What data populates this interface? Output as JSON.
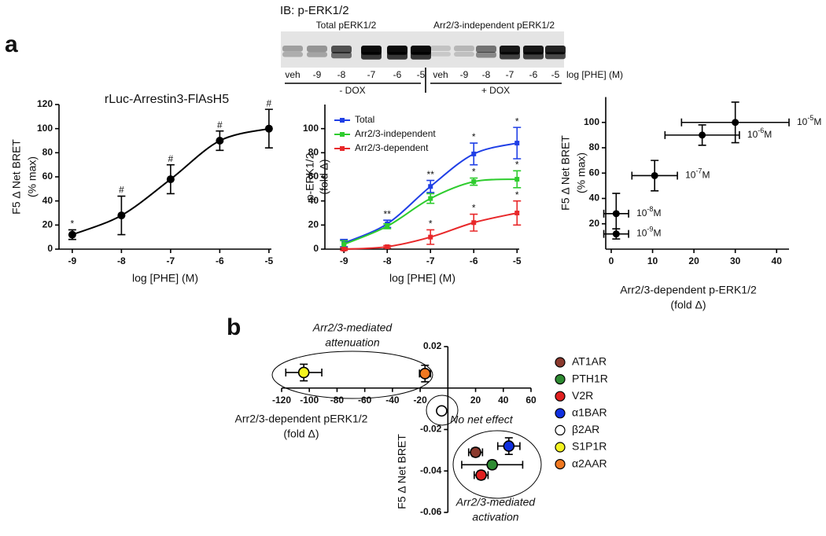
{
  "panel_labels": [
    "a",
    "b"
  ],
  "blot": {
    "title": "IB: p-ERK1/2",
    "groups": [
      "Total pERK1/2",
      "Arr2/3-independent pERK1/2"
    ],
    "lanes": [
      "veh",
      "-9",
      "-8",
      "-7",
      "-6",
      "-5",
      "veh",
      "-9",
      "-8",
      "-7",
      "-6",
      "-5"
    ],
    "lane_axis": "log [PHE] (M)",
    "conditions": [
      "- DOX",
      "+ DOX"
    ]
  },
  "chart_data": [
    {
      "type": "line",
      "title": "rLuc-Arrestin3-FlAsH5",
      "xlabel": [
        "log [PHE] (M)"
      ],
      "ylabel": [
        "F5 Δ Net BRET",
        "(% max)"
      ],
      "x": [
        -9,
        -8,
        -7,
        -6,
        -5
      ],
      "values": [
        12,
        28,
        58,
        90,
        100
      ],
      "errors": [
        4,
        16,
        12,
        8,
        16
      ],
      "annotations": [
        "*",
        "#",
        "#",
        "#",
        "#"
      ],
      "color": "#000000",
      "xlim": [
        -9.27,
        -4.95
      ],
      "xticks": [
        -9,
        -8,
        -7,
        -6,
        -5
      ],
      "ylim": [
        0,
        120
      ],
      "yticks": [
        0,
        20,
        40,
        60,
        80,
        100,
        120
      ]
    },
    {
      "type": "line",
      "xlabel": [
        "log [PHE] (M)"
      ],
      "ylabel": [
        "p-ERK1/2",
        "(fold Δ)"
      ],
      "x": [
        -9,
        -8,
        -7,
        -6,
        -5
      ],
      "series": [
        {
          "name": "Total",
          "color": "#1f3fe6",
          "values": [
            5,
            21,
            52,
            79,
            88
          ],
          "errors": [
            3,
            3,
            5,
            9,
            13
          ],
          "annotations": [
            null,
            "**",
            "**",
            "*",
            "*"
          ]
        },
        {
          "name": "Arr2/3-independent",
          "color": "#2ecc2e",
          "values": [
            4,
            19,
            42,
            56,
            58
          ],
          "errors": [
            3,
            2,
            4,
            3,
            7
          ],
          "annotations": [
            null,
            null,
            null,
            "*",
            "*"
          ]
        },
        {
          "name": "Arr2/3-dependent",
          "color": "#e8282a",
          "values": [
            0,
            2,
            10,
            22,
            30
          ],
          "errors": [
            1,
            1,
            6,
            7,
            10
          ],
          "annotations": [
            null,
            null,
            "*",
            "*",
            "*"
          ]
        }
      ],
      "xlim": [
        -9.44,
        -4.95
      ],
      "xticks": [
        -9,
        -8,
        -7,
        -6,
        -5
      ],
      "ylim": [
        0,
        120
      ],
      "yticks": [
        0,
        20,
        40,
        60,
        80,
        100
      ]
    },
    {
      "type": "scatter",
      "xlabel": [
        "Arr2/3-dependent p-ERK1/2",
        "(fold Δ)"
      ],
      "ylabel": [
        "F5 Δ Net BRET",
        "(% max)"
      ],
      "x": [
        1.2,
        1.2,
        10.5,
        22,
        30
      ],
      "values": [
        12,
        28,
        58,
        90,
        100
      ],
      "xerr": [
        3,
        3,
        5.5,
        9,
        13
      ],
      "yerr": [
        4,
        16,
        12,
        8,
        16
      ],
      "point_labels": [
        {
          "base": "10",
          "exponent": "-9",
          "unit": "M"
        },
        {
          "base": "10",
          "exponent": "-8",
          "unit": "M"
        },
        {
          "base": "10",
          "exponent": "-7",
          "unit": "M"
        },
        {
          "base": "10",
          "exponent": "-6",
          "unit": "M"
        },
        {
          "base": "10",
          "exponent": "-5",
          "unit": "M"
        }
      ],
      "color": "#000000",
      "xlim": [
        -1.33,
        43
      ],
      "xticks": [
        0,
        10,
        20,
        30,
        40
      ],
      "ylim": [
        0,
        120
      ],
      "yticks": [
        20,
        40,
        60,
        80,
        100
      ]
    },
    {
      "type": "scatter",
      "axes_at_origin": true,
      "xlabel": [
        "Arr2/3-dependent pERK1/2",
        "(fold Δ)"
      ],
      "ylabel": [
        "F5 Δ Net BRET"
      ],
      "annotations": [
        [
          "Arr2/3-mediated",
          "attenuation"
        ],
        [
          "No net effect"
        ],
        [
          "Arr2/3-mediated",
          "activation"
        ]
      ],
      "series": [
        {
          "name": "AT1AR",
          "color": "#8b3a2e",
          "x": [
            20
          ],
          "values": [
            -0.031
          ],
          "xerr": [
            5
          ],
          "yerr": [
            0.002
          ]
        },
        {
          "name": "PTH1R",
          "color": "#2e8b32",
          "x": [
            32
          ],
          "values": [
            -0.037
          ],
          "xerr": [
            22
          ],
          "yerr": [
            0.002
          ]
        },
        {
          "name": "V2R",
          "color": "#e02020",
          "x": [
            24
          ],
          "values": [
            -0.042
          ],
          "xerr": [
            5
          ],
          "yerr": [
            0.002
          ]
        },
        {
          "name": "α1BAR",
          "color": "#1030e0",
          "x": [
            44
          ],
          "values": [
            -0.028
          ],
          "xerr": [
            8
          ],
          "yerr": [
            0.004
          ]
        },
        {
          "name": "β2AR",
          "color": "#ffffff",
          "x": [
            -4.5
          ],
          "values": [
            -0.011
          ],
          "xerr": [
            0
          ],
          "yerr": [
            0
          ]
        },
        {
          "name": "S1P1R",
          "color": "#f4f420",
          "x": [
            -104
          ],
          "values": [
            0.0075
          ],
          "xerr": [
            13
          ],
          "yerr": [
            0.004
          ]
        },
        {
          "name": "α2AAR",
          "color": "#f07820",
          "x": [
            -16.5
          ],
          "values": [
            0.007
          ],
          "xerr": [
            4
          ],
          "yerr": [
            0.004
          ]
        }
      ],
      "xlim": [
        -120,
        60
      ],
      "xticks": [
        -120,
        -100,
        -80,
        -60,
        -40,
        -20,
        20,
        40,
        60
      ],
      "ylim": [
        -0.06,
        0.02
      ],
      "yticks": [
        -0.06,
        -0.04,
        -0.02,
        0.02
      ]
    }
  ]
}
